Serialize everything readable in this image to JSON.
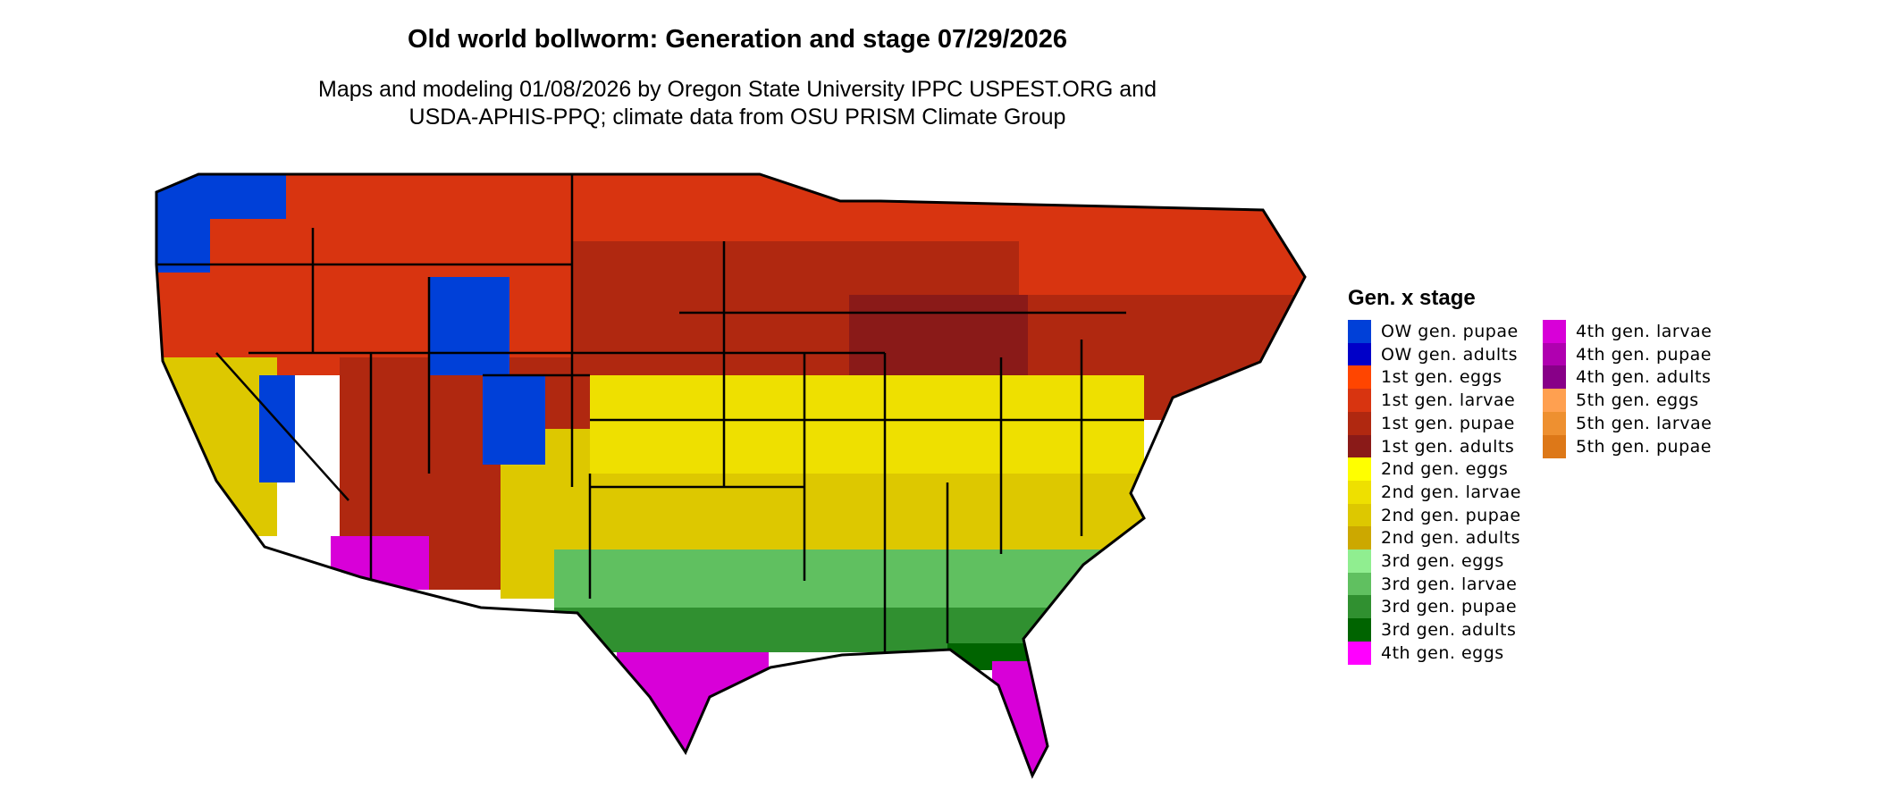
{
  "title": "Old world bollworm: Generation and stage 07/29/2026",
  "subtitle_lines": [
    "Maps and modeling 01/08/2026 by Oregon State University IPPC USPEST.ORG and",
    "USDA-APHIS-PPQ; climate data from OSU PRISM Climate Group"
  ],
  "legend": {
    "title": "Gen. x stage",
    "items": [
      {
        "label": "OW gen. pupae",
        "color": "#0040D8"
      },
      {
        "label": "OW gen. adults",
        "color": "#0000C8"
      },
      {
        "label": "1st gen. eggs",
        "color": "#FF4500"
      },
      {
        "label": "1st gen. larvae",
        "color": "#D83410"
      },
      {
        "label": "1st gen. pupae",
        "color": "#B02810"
      },
      {
        "label": "1st gen. adults",
        "color": "#8A1A18"
      },
      {
        "label": "2nd gen. eggs",
        "color": "#FFFF00"
      },
      {
        "label": "2nd gen. larvae",
        "color": "#EEE000"
      },
      {
        "label": "2nd gen. pupae",
        "color": "#DDC800"
      },
      {
        "label": "2nd gen. adults",
        "color": "#CCA800"
      },
      {
        "label": "3rd gen. eggs",
        "color": "#90EE90"
      },
      {
        "label": "3rd gen. larvae",
        "color": "#60C060"
      },
      {
        "label": "3rd gen. pupae",
        "color": "#309030"
      },
      {
        "label": "3rd gen. adults",
        "color": "#006400"
      },
      {
        "label": "4th gen. eggs",
        "color": "#FF00FF"
      },
      {
        "label": "4th gen. larvae",
        "color": "#D800D8"
      },
      {
        "label": "4th gen. pupae",
        "color": "#B000B0"
      },
      {
        "label": "4th gen. adults",
        "color": "#880088"
      },
      {
        "label": "5th gen. eggs",
        "color": "#FFA050"
      },
      {
        "label": "5th gen. larvae",
        "color": "#EE9030"
      },
      {
        "label": "5th gen. pupae",
        "color": "#DD7818"
      }
    ]
  }
}
